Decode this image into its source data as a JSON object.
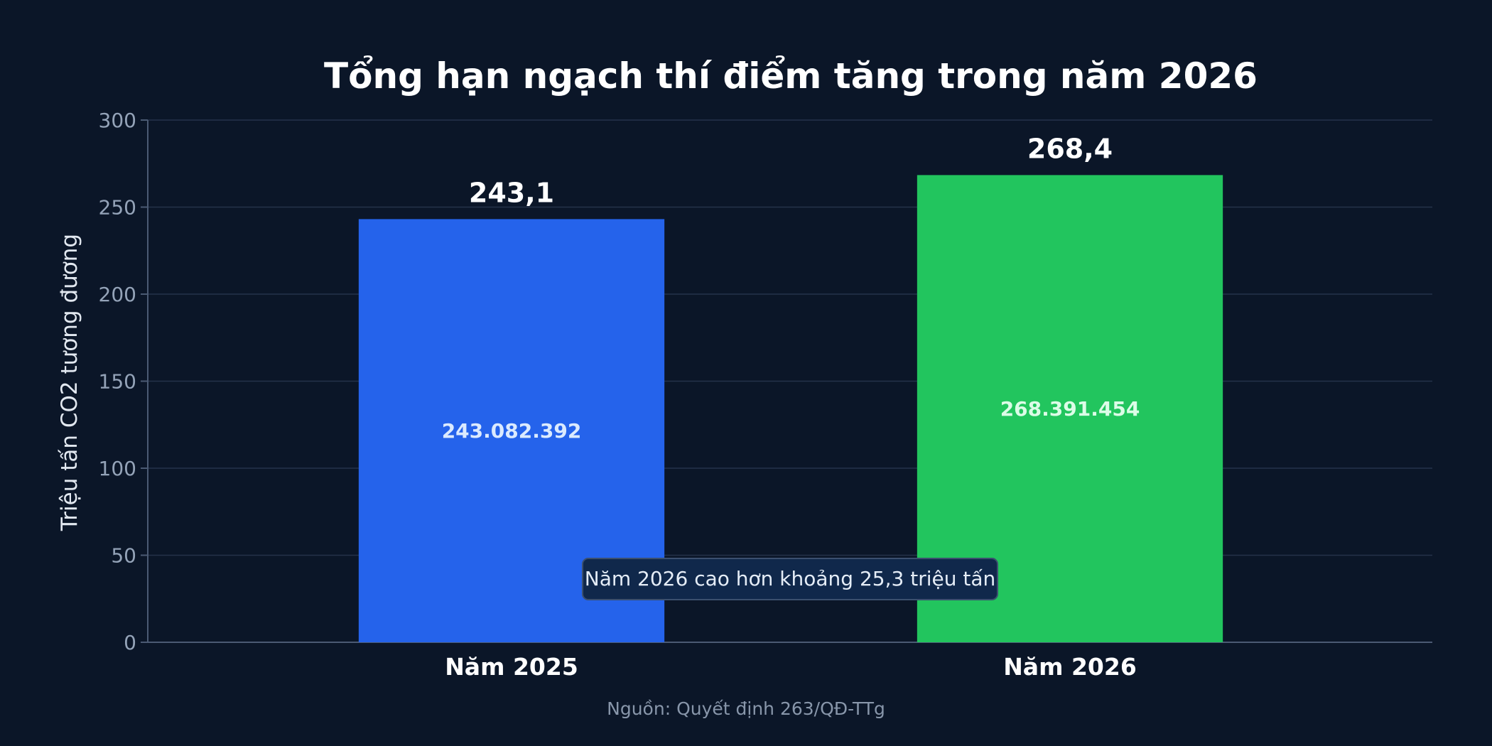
{
  "chart_data": {
    "type": "bar",
    "title": "Tổng hạn ngạch thí điểm tăng trong năm 2026",
    "ylabel": "Triệu tấn CO2 tương đương",
    "xlabel": "",
    "categories": [
      "Năm 2025",
      "Năm 2026"
    ],
    "values": [
      243.1,
      268.4
    ],
    "value_labels": [
      "243,1",
      "268,4"
    ],
    "inner_labels": [
      "243.082.392",
      "268.391.454"
    ],
    "ylim": [
      0,
      300
    ],
    "yticks": [
      0,
      50,
      100,
      150,
      200,
      250,
      300
    ],
    "grid": true,
    "annotation": "Năm 2026 cao hơn khoảng 25,3 triệu tấn",
    "source": "Nguồn: Quyết định 263/QĐ-TTg",
    "colors": {
      "background": "#0b1628",
      "bars": [
        "#2563eb",
        "#22c55e"
      ],
      "grid": "#25324a",
      "axis": "#4b5a73",
      "tick_text": "#94a3b8",
      "title_text": "#ffffff",
      "inner_label_2025": "#dbeafe",
      "inner_label_2026": "#dcfce7",
      "annotation_bg": "#10284b",
      "annotation_border": "#3b4f6e",
      "source_text": "#8896aa"
    }
  }
}
